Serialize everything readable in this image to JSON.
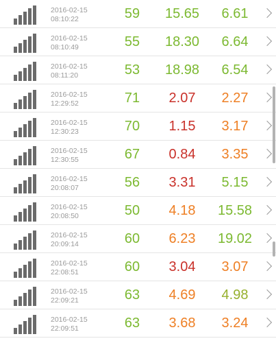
{
  "colors": {
    "green": "#7cb931",
    "red": "#c9312a",
    "orange": "#ee7f24",
    "yellowgreen": "#96b02d",
    "bars": "#6b6b6b"
  },
  "icons": {
    "signal": "signal-strength-icon",
    "chevron": "chevron-right-icon"
  },
  "rows": [
    {
      "date": "2016-02-15",
      "time": "08:10:22",
      "v1": "59",
      "v1_color": "green",
      "v2": "15.65",
      "v2_color": "green",
      "v3": "6.61",
      "v3_color": "green"
    },
    {
      "date": "2016-02-15",
      "time": "08:10:49",
      "v1": "55",
      "v1_color": "green",
      "v2": "18.30",
      "v2_color": "green",
      "v3": "6.64",
      "v3_color": "green"
    },
    {
      "date": "2016-02-15",
      "time": "08:11:20",
      "v1": "53",
      "v1_color": "green",
      "v2": "18.98",
      "v2_color": "green",
      "v3": "6.54",
      "v3_color": "green"
    },
    {
      "date": "2016-02-15",
      "time": "12:29:52",
      "v1": "71",
      "v1_color": "green",
      "v2": "2.07",
      "v2_color": "red",
      "v3": "2.27",
      "v3_color": "orange"
    },
    {
      "date": "2016-02-15",
      "time": "12:30:23",
      "v1": "70",
      "v1_color": "green",
      "v2": "1.15",
      "v2_color": "red",
      "v3": "3.17",
      "v3_color": "orange"
    },
    {
      "date": "2016-02-15",
      "time": "12:30:55",
      "v1": "67",
      "v1_color": "green",
      "v2": "0.84",
      "v2_color": "red",
      "v3": "3.35",
      "v3_color": "orange"
    },
    {
      "date": "2016-02-15",
      "time": "20:08:07",
      "v1": "56",
      "v1_color": "green",
      "v2": "3.31",
      "v2_color": "red",
      "v3": "5.15",
      "v3_color": "green"
    },
    {
      "date": "2016-02-15",
      "time": "20:08:50",
      "v1": "50",
      "v1_color": "green",
      "v2": "4.18",
      "v2_color": "orange",
      "v3": "15.58",
      "v3_color": "green"
    },
    {
      "date": "2016-02-15",
      "time": "20:09:14",
      "v1": "60",
      "v1_color": "green",
      "v2": "6.23",
      "v2_color": "orange",
      "v3": "19.02",
      "v3_color": "green"
    },
    {
      "date": "2016-02-15",
      "time": "22:08:51",
      "v1": "60",
      "v1_color": "green",
      "v2": "3.04",
      "v2_color": "red",
      "v3": "3.07",
      "v3_color": "orange"
    },
    {
      "date": "2016-02-15",
      "time": "22:09:21",
      "v1": "63",
      "v1_color": "green",
      "v2": "4.69",
      "v2_color": "orange",
      "v3": "4.98",
      "v3_color": "yellowgreen"
    },
    {
      "date": "2016-02-15",
      "time": "22:09:51",
      "v1": "63",
      "v1_color": "green",
      "v2": "3.68",
      "v2_color": "orange",
      "v3": "3.24",
      "v3_color": "orange"
    }
  ]
}
